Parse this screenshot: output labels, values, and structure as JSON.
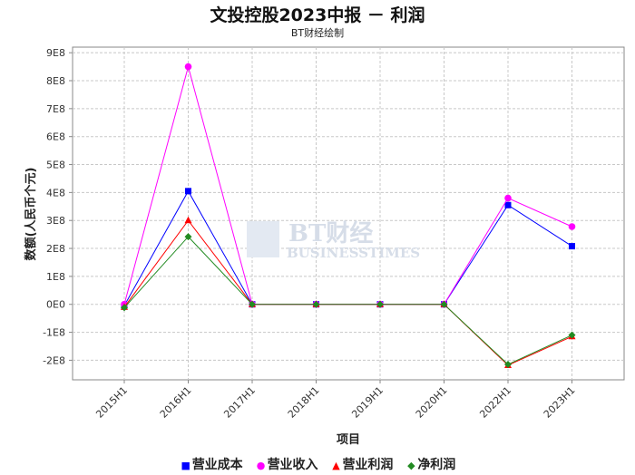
{
  "title": "文投控股2023中报 － 利润",
  "subtitle": "BT财经绘制",
  "watermark": {
    "main": "BT财经",
    "sub": "BUSINESSTIMES"
  },
  "chart_data": {
    "type": "line",
    "title": "文投控股2023中报 － 利润",
    "subtitle": "BT财经绘制",
    "xlabel": "项目",
    "ylabel": "数额(人民币个元)",
    "categories": [
      "2015H1",
      "2016H1",
      "2017H1",
      "2018H1",
      "2019H1",
      "2020H1",
      "2022H1",
      "2023H1"
    ],
    "yticks": [
      "9E8",
      "8E8",
      "7E8",
      "6E8",
      "5E8",
      "4E8",
      "3E8",
      "2E8",
      "1E8",
      "0E0",
      "-1E8",
      "-2E8"
    ],
    "ytick_values": [
      900000000,
      800000000,
      700000000,
      600000000,
      500000000,
      400000000,
      300000000,
      200000000,
      100000000,
      0,
      -100000000,
      -200000000
    ],
    "ylim": [
      -270000000,
      920000000
    ],
    "grid": true,
    "legend_position": "bottom",
    "series": [
      {
        "name": "营业成本",
        "color": "#0000ff",
        "marker": "square",
        "values": [
          -5000000,
          405000000,
          0,
          0,
          0,
          0,
          355000000,
          208000000
        ]
      },
      {
        "name": "营业收入",
        "color": "#ff00ff",
        "marker": "circle",
        "values": [
          0,
          850000000,
          0,
          0,
          0,
          0,
          380000000,
          278000000
        ]
      },
      {
        "name": "营业利润",
        "color": "#ff0000",
        "marker": "triangle",
        "values": [
          -10000000,
          300000000,
          0,
          0,
          0,
          0,
          -218000000,
          -115000000
        ]
      },
      {
        "name": "净利润",
        "color": "#228b22",
        "marker": "diamond",
        "values": [
          -12000000,
          242000000,
          0,
          0,
          0,
          0,
          -215000000,
          -110000000
        ]
      }
    ]
  }
}
